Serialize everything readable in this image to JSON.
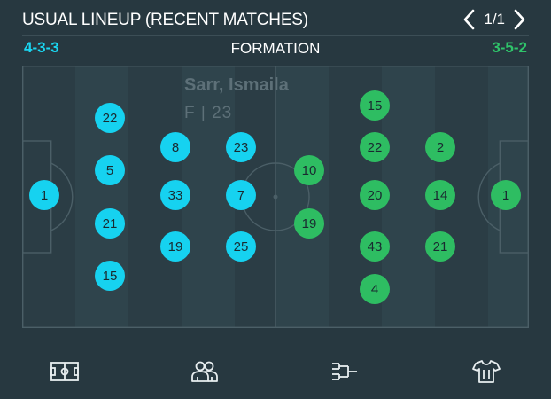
{
  "header": {
    "title": "USUAL LINEUP (RECENT MATCHES)",
    "page_count": "1/1",
    "prev_icon": "chevron-left-icon",
    "next_icon": "chevron-right-icon"
  },
  "formation": {
    "label": "FORMATION",
    "home": "4-3-3",
    "away": "3-5-2"
  },
  "colors": {
    "background": "#273840",
    "home": "#16d2f0",
    "away": "#2ebd62"
  },
  "hovered_player": {
    "name": "Sarr, Ismaila",
    "position": "F",
    "number": "23"
  },
  "home_players": [
    "1",
    "22",
    "5",
    "21",
    "15",
    "8",
    "33",
    "19",
    "23",
    "7",
    "25"
  ],
  "away_players": [
    "10",
    "19",
    "15",
    "22",
    "20",
    "43",
    "4",
    "2",
    "14",
    "21",
    "1"
  ],
  "nav": [
    {
      "icon": "pitch-icon"
    },
    {
      "icon": "players-icon"
    },
    {
      "icon": "bracket-icon"
    },
    {
      "icon": "jersey-icon"
    }
  ]
}
